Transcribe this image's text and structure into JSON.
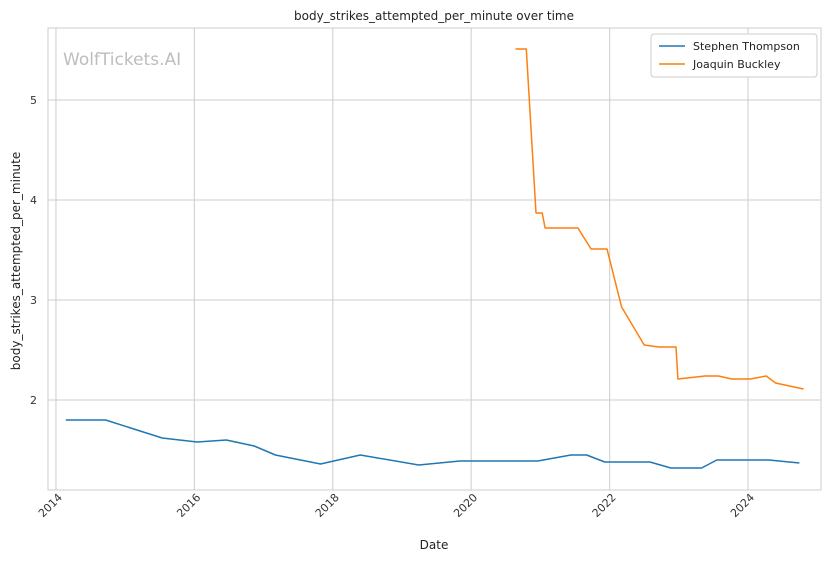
{
  "chart_data": {
    "type": "line",
    "title": "body_strikes_attempted_per_minute over time",
    "xlabel": "Date",
    "ylabel": "body_strikes_attempted_per_minute",
    "watermark": "WolfTickets.AI",
    "xlim": [
      "2013-11-20",
      "2025-01-20"
    ],
    "ylim": [
      1.1,
      5.72
    ],
    "x_ticks": [
      "2014-01-01",
      "2016-01-01",
      "2018-01-01",
      "2020-01-01",
      "2022-01-01",
      "2024-01-01"
    ],
    "x_tick_labels": [
      "2014",
      "2016",
      "2018",
      "2020",
      "2022",
      "2024"
    ],
    "y_ticks": [
      2,
      3,
      4,
      5
    ],
    "y_tick_labels": [
      "2",
      "3",
      "4",
      "5"
    ],
    "grid": true,
    "legend_position": "top-right",
    "series": [
      {
        "name": "Stephen Thompson",
        "color": "#1f77b4",
        "points": [
          [
            "2014-02-22",
            1.8
          ],
          [
            "2014-06-28",
            1.8
          ],
          [
            "2014-09-20",
            1.8
          ],
          [
            "2015-07-15",
            1.62
          ],
          [
            "2016-01-16",
            1.58
          ],
          [
            "2016-06-18",
            1.6
          ],
          [
            "2016-11-12",
            1.54
          ],
          [
            "2017-03-04",
            1.45
          ],
          [
            "2017-10-28",
            1.36
          ],
          [
            "2018-05-26",
            1.45
          ],
          [
            "2019-03-30",
            1.35
          ],
          [
            "2019-11-02",
            1.39
          ],
          [
            "2020-12-19",
            1.39
          ],
          [
            "2021-01-15",
            1.4
          ],
          [
            "2021-06-10",
            1.45
          ],
          [
            "2021-09-01",
            1.45
          ],
          [
            "2021-12-06",
            1.38
          ],
          [
            "2022-08-01",
            1.38
          ],
          [
            "2022-11-20",
            1.32
          ],
          [
            "2023-05-01",
            1.32
          ],
          [
            "2023-07-20",
            1.4
          ],
          [
            "2024-04-20",
            1.4
          ],
          [
            "2024-09-28",
            1.37
          ]
        ]
      },
      {
        "name": "Joaquin Buckley",
        "color": "#ff7f0e",
        "points": [
          [
            "2020-08-22",
            5.51
          ],
          [
            "2020-10-18",
            5.51
          ],
          [
            "2020-12-08",
            3.87
          ],
          [
            "2021-01-10",
            3.87
          ],
          [
            "2021-01-25",
            3.72
          ],
          [
            "2021-07-17",
            3.72
          ],
          [
            "2021-09-25",
            3.51
          ],
          [
            "2021-12-18",
            3.51
          ],
          [
            "2022-03-05",
            2.93
          ],
          [
            "2022-07-02",
            2.55
          ],
          [
            "2022-09-17",
            2.53
          ],
          [
            "2022-12-17",
            2.53
          ],
          [
            "2022-12-27",
            2.21
          ],
          [
            "2023-05-20",
            2.24
          ],
          [
            "2023-07-29",
            2.24
          ],
          [
            "2023-10-07",
            2.21
          ],
          [
            "2024-01-13",
            2.21
          ],
          [
            "2024-04-06",
            2.24
          ],
          [
            "2024-05-25",
            2.17
          ],
          [
            "2024-10-20",
            2.11
          ]
        ]
      }
    ]
  }
}
